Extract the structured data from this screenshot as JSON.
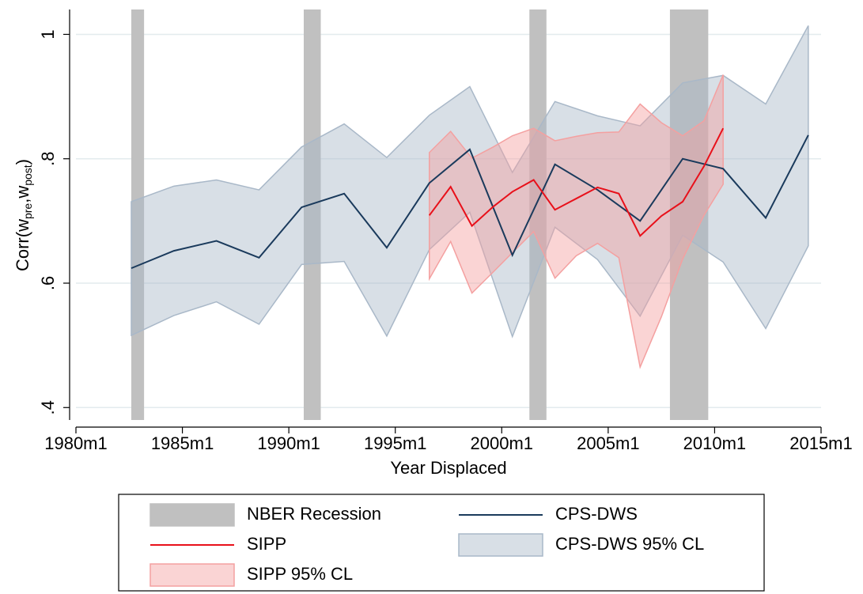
{
  "chart_data": {
    "type": "line",
    "xlabel": "Year Displaced",
    "ylabel_parts": [
      "Corr(w",
      "pre",
      ",w",
      "post",
      ")"
    ],
    "xlim": [
      1980,
      2015
    ],
    "ylim": [
      0.38,
      1.04
    ],
    "xticks": [
      {
        "value": 1980,
        "label": "1980m1"
      },
      {
        "value": 1985,
        "label": "1985m1"
      },
      {
        "value": 1990,
        "label": "1990m1"
      },
      {
        "value": 1995,
        "label": "1995m1"
      },
      {
        "value": 2000,
        "label": "2000m1"
      },
      {
        "value": 2005,
        "label": "2005m1"
      },
      {
        "value": 2010,
        "label": "2010m1"
      },
      {
        "value": 2015,
        "label": "2015m1"
      }
    ],
    "yticks": [
      {
        "value": 0.4,
        "label": ".4"
      },
      {
        "value": 0.6,
        "label": ".6"
      },
      {
        "value": 0.8,
        "label": ".8"
      },
      1
    ],
    "grid": true,
    "recession": {
      "name": "NBER Recession",
      "color": "#c0c0c0",
      "periods": [
        [
          1982.6,
          1983.2
        ],
        [
          1990.7,
          1991.5
        ],
        [
          2001.3,
          2002.1
        ],
        [
          2007.9,
          2009.7
        ]
      ]
    },
    "series": [
      {
        "name": "CPS-DWS",
        "color": "#1a3a5c",
        "band_name": "CPS-DWS 95% CL",
        "band_color": "#a9b8c8",
        "x": [
          1982.6,
          1984.6,
          1986.6,
          1988.6,
          1990.6,
          1992.6,
          1994.6,
          1996.6,
          1998.5,
          2000.5,
          2002.5,
          2004.5,
          2006.5,
          2008.5,
          2010.4,
          2012.4,
          2014.4
        ],
        "values": [
          0.624,
          0.652,
          0.668,
          0.641,
          0.722,
          0.744,
          0.657,
          0.761,
          0.815,
          0.645,
          0.791,
          0.75,
          0.7,
          0.8,
          0.784,
          0.705,
          0.838
        ],
        "upper": [
          0.731,
          0.756,
          0.766,
          0.75,
          0.819,
          0.856,
          0.802,
          0.87,
          0.916,
          0.778,
          0.892,
          0.869,
          0.853,
          0.922,
          0.934,
          0.888,
          1.014
        ],
        "lower": [
          0.516,
          0.548,
          0.57,
          0.534,
          0.63,
          0.635,
          0.515,
          0.654,
          0.714,
          0.514,
          0.69,
          0.638,
          0.547,
          0.677,
          0.634,
          0.527,
          0.66
        ]
      },
      {
        "name": "SIPP",
        "color": "#e8101a",
        "band_name": "SIPP 95% CL",
        "band_color": "#f4a0a0",
        "x": [
          1996.6,
          1997.6,
          1998.6,
          1999.6,
          2000.5,
          2001.5,
          2002.5,
          2003.5,
          2004.5,
          2005.5,
          2006.5,
          2007.5,
          2008.5,
          2009.5,
          2010.4
        ],
        "values": [
          0.709,
          0.755,
          0.692,
          0.723,
          0.747,
          0.766,
          0.718,
          0.736,
          0.754,
          0.744,
          0.676,
          0.708,
          0.731,
          0.788,
          0.849
        ],
        "upper": [
          0.81,
          0.844,
          0.801,
          0.819,
          0.837,
          0.849,
          0.829,
          0.836,
          0.842,
          0.843,
          0.888,
          0.858,
          0.837,
          0.861,
          0.935
        ],
        "lower": [
          0.607,
          0.667,
          0.584,
          0.618,
          0.649,
          0.683,
          0.608,
          0.644,
          0.664,
          0.641,
          0.465,
          0.546,
          0.639,
          0.709,
          0.759
        ]
      }
    ]
  }
}
